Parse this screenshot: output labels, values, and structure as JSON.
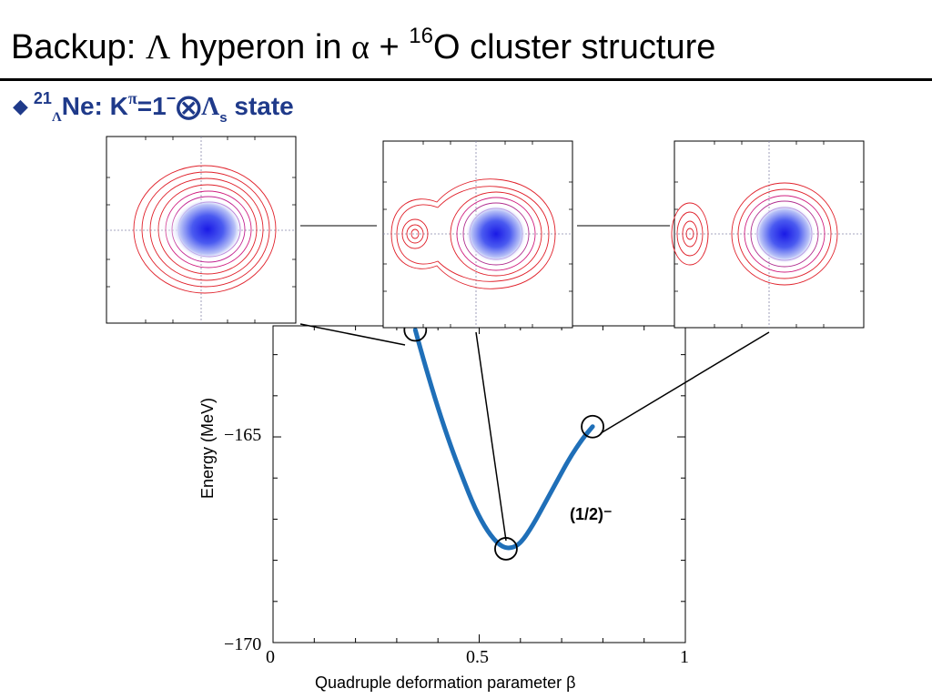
{
  "slide": {
    "title_prefix": "Backup: ",
    "title_lambda": "Λ",
    "title_mid": " hyperon in ",
    "title_alpha": "α",
    "title_plus": " + ",
    "title_mass": "16",
    "title_suffix": "O cluster structure",
    "bullet": "◆",
    "sub_mass": "21",
    "sub_lambda": "Λ",
    "sub_ne": "Ne: K",
    "sub_pi": "π",
    "sub_eq": "=1",
    "sub_minus": "−",
    "sub_otimes": "⨂",
    "sub_lambda2": "Λ",
    "sub_s": "s",
    "sub_state": " state"
  },
  "chart_data": {
    "type": "line",
    "xlabel": "Quadruple deformation parameter β",
    "ylabel": "Energy (MeV)",
    "xlim": [
      0,
      1
    ],
    "ylim": [
      -170,
      -162.3
    ],
    "xticks": [
      "0",
      "0.5",
      "1"
    ],
    "yticks": [
      "−165",
      "−170"
    ],
    "grid": false,
    "series": [
      {
        "name": "(1/2)⁻",
        "color": "#1f6fb8",
        "x": [
          0.345,
          0.37,
          0.4,
          0.43,
          0.46,
          0.49,
          0.52,
          0.55,
          0.575,
          0.6,
          0.63,
          0.66,
          0.69,
          0.72,
          0.75,
          0.775
        ],
        "y": [
          -162.4,
          -163.3,
          -164.3,
          -165.2,
          -166.0,
          -166.75,
          -167.3,
          -167.65,
          -167.72,
          -167.6,
          -167.15,
          -166.6,
          -166.05,
          -165.5,
          -165.05,
          -164.75
        ]
      }
    ],
    "highlighted_points": [
      {
        "x": 0.345,
        "y": -162.4
      },
      {
        "x": 0.565,
        "y": -167.72
      },
      {
        "x": 0.775,
        "y": -164.75
      }
    ],
    "annotation": "(1/2)⁻",
    "insets": [
      {
        "description_color_outer": "#e0202a",
        "description_color_inner": "#2030e8"
      },
      {
        "description_color_outer": "#e0202a",
        "description_color_inner": "#2030e8"
      },
      {
        "description_color_outer": "#e0202a",
        "description_color_inner": "#2030e8"
      }
    ]
  }
}
